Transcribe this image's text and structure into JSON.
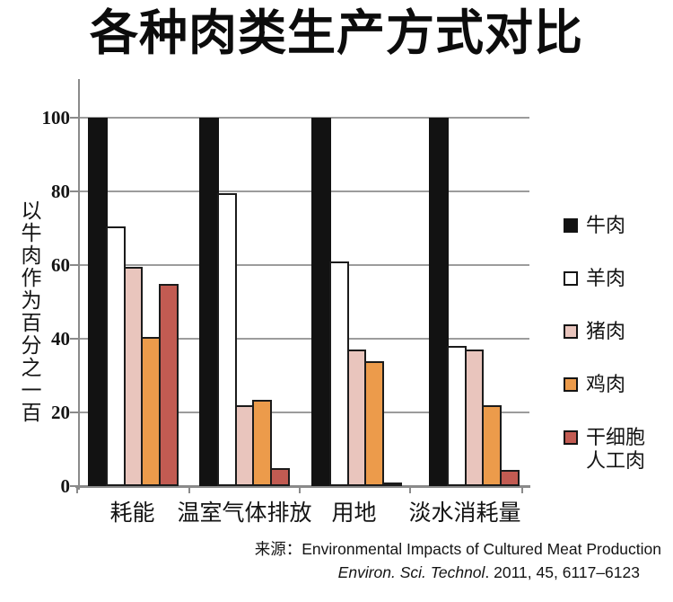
{
  "title": "各种肉类生产方式对比",
  "chart_data": {
    "type": "bar",
    "title": "各种肉类生产方式对比",
    "categories": [
      "耗能",
      "温室气体排放",
      "用地",
      "淡水消耗量"
    ],
    "series": [
      {
        "name": "牛肉",
        "legend_label": "牛肉",
        "color": "#121212",
        "values": [
          100,
          100,
          100,
          100
        ]
      },
      {
        "name": "羊肉",
        "legend_label": "羊肉",
        "color": "#ffffff",
        "values": [
          70.5,
          79.5,
          61,
          38
        ]
      },
      {
        "name": "猪肉",
        "legend_label": "猪肉",
        "color": "#e9c5bd",
        "values": [
          59.5,
          22,
          37,
          37
        ]
      },
      {
        "name": "鸡肉",
        "legend_label": "鸡肉",
        "color": "#ec9b4b",
        "values": [
          40.5,
          23.5,
          34,
          22
        ]
      },
      {
        "name": "干细胞人工肉",
        "legend_label": "干细胞\n人工肉",
        "color": "#c25b52",
        "values": [
          55,
          5,
          1,
          4.5
        ]
      }
    ],
    "ylabel": "以牛肉作为百分之一百",
    "xlabel": "",
    "ylim": [
      0,
      100
    ],
    "yticks": [
      0,
      20,
      40,
      60,
      80,
      100
    ],
    "grid": "horizontal",
    "legend_position": "right",
    "bar_outline_color": "#1b1b1b",
    "gridline_color": "#9c9c9c",
    "axis_color": "#8a8a8a"
  },
  "source": {
    "line1": "来源：Environmental Impacts of Cultured Meat Production",
    "line2_italic": "Environ. Sci. Technol",
    "line2_rest": ". 2011, 45, 6117–6123"
  }
}
